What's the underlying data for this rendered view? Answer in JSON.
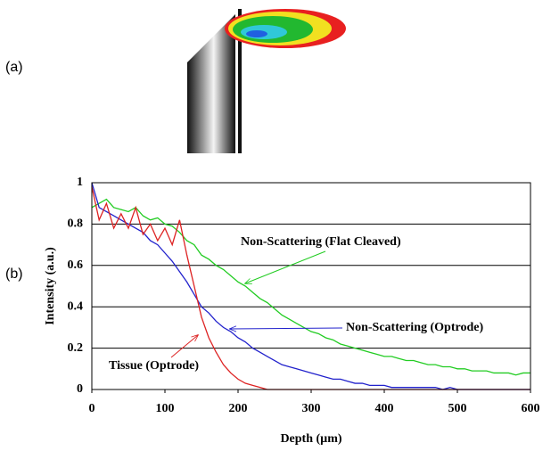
{
  "panel_labels": {
    "a": "(a)",
    "b": "(b)"
  },
  "chart_data": {
    "type": "line",
    "x_label": "Depth (µm)",
    "y_label": "Intensity (a.u.)",
    "annotations": [
      "Non-Scattering (Flat Cleaved)",
      "Non-Scattering (Optrode)",
      "Tissue (Optrode)"
    ],
    "x": [
      0,
      10,
      20,
      30,
      40,
      50,
      60,
      70,
      80,
      90,
      100,
      110,
      120,
      130,
      140,
      150,
      160,
      170,
      180,
      190,
      200,
      210,
      220,
      230,
      240,
      250,
      260,
      270,
      280,
      290,
      300,
      310,
      320,
      330,
      340,
      350,
      360,
      370,
      380,
      390,
      400,
      410,
      420,
      430,
      440,
      450,
      460,
      470,
      480,
      490,
      500,
      510,
      520,
      530,
      540,
      550,
      560,
      570,
      580,
      590,
      600
    ],
    "series": [
      {
        "name": "Non-Scattering (Flat Cleaved)",
        "color": "#22cc22",
        "values": [
          0.88,
          0.9,
          0.92,
          0.88,
          0.87,
          0.86,
          0.88,
          0.84,
          0.82,
          0.83,
          0.8,
          0.79,
          0.76,
          0.72,
          0.7,
          0.65,
          0.63,
          0.6,
          0.58,
          0.55,
          0.52,
          0.5,
          0.47,
          0.44,
          0.42,
          0.39,
          0.36,
          0.34,
          0.32,
          0.3,
          0.28,
          0.27,
          0.25,
          0.24,
          0.22,
          0.21,
          0.2,
          0.19,
          0.18,
          0.17,
          0.16,
          0.16,
          0.15,
          0.14,
          0.14,
          0.13,
          0.12,
          0.12,
          0.11,
          0.11,
          0.1,
          0.1,
          0.09,
          0.09,
          0.09,
          0.08,
          0.08,
          0.08,
          0.07,
          0.08,
          0.08
        ]
      },
      {
        "name": "Non-Scattering (Optrode)",
        "color": "#2222cc",
        "values": [
          1.0,
          0.88,
          0.86,
          0.84,
          0.82,
          0.8,
          0.78,
          0.76,
          0.72,
          0.7,
          0.66,
          0.62,
          0.57,
          0.52,
          0.46,
          0.4,
          0.37,
          0.33,
          0.3,
          0.28,
          0.25,
          0.23,
          0.2,
          0.18,
          0.16,
          0.14,
          0.12,
          0.11,
          0.1,
          0.09,
          0.08,
          0.07,
          0.06,
          0.05,
          0.05,
          0.04,
          0.03,
          0.03,
          0.02,
          0.02,
          0.02,
          0.01,
          0.01,
          0.01,
          0.01,
          0.01,
          0.01,
          0.01,
          0,
          0.01,
          0,
          0,
          0,
          0,
          0,
          0,
          0,
          0,
          0,
          0,
          0
        ]
      },
      {
        "name": "Tissue (Optrode)",
        "color": "#dd2222",
        "values": [
          0.98,
          0.82,
          0.9,
          0.78,
          0.85,
          0.78,
          0.88,
          0.75,
          0.8,
          0.72,
          0.78,
          0.7,
          0.82,
          0.65,
          0.5,
          0.35,
          0.25,
          0.18,
          0.12,
          0.08,
          0.05,
          0.03,
          0.02,
          0.01,
          0,
          0,
          0,
          0,
          0,
          0,
          0,
          0,
          0,
          0,
          0,
          0,
          0,
          0,
          0,
          0,
          0,
          0,
          0,
          0,
          0,
          0,
          0,
          0,
          0,
          0,
          0,
          0,
          0,
          0,
          0,
          0,
          0,
          0,
          0,
          0,
          0
        ]
      }
    ],
    "xlim": [
      0,
      600
    ],
    "xticks": [
      0,
      100,
      200,
      300,
      400,
      500,
      600
    ],
    "ylim": [
      0,
      1
    ],
    "yticks": [
      0,
      0.2,
      0.4,
      0.6,
      0.8,
      1
    ],
    "grid": true
  }
}
